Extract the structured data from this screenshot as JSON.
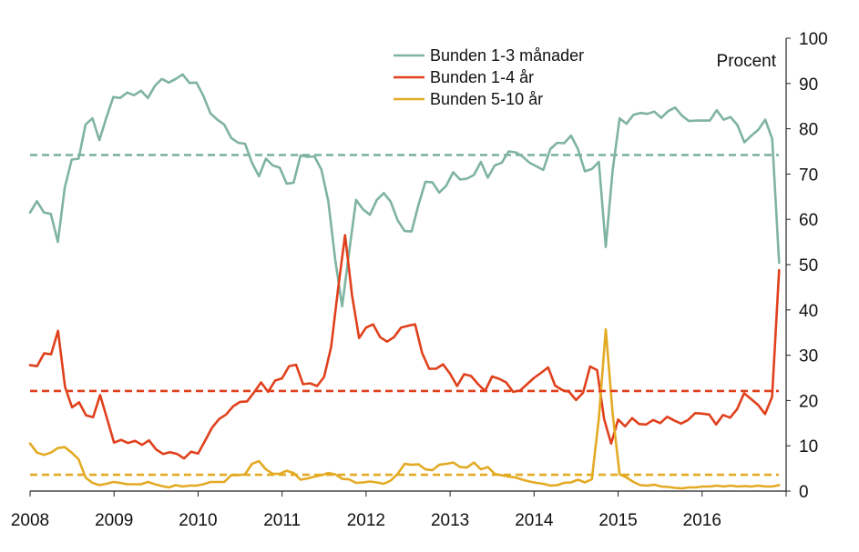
{
  "chart_data": {
    "type": "line",
    "y_unit_label": "Procent",
    "x_ticks": [
      "2008",
      "2009",
      "2010",
      "2011",
      "2012",
      "2013",
      "2014",
      "2015",
      "2016"
    ],
    "x_range": [
      2008.0,
      2017.0
    ],
    "ylim": [
      0,
      100
    ],
    "y_ticks": [
      "0",
      "10",
      "20",
      "30",
      "40",
      "50",
      "60",
      "70",
      "80",
      "90",
      "100"
    ],
    "grid": false,
    "legend_position": "top-center",
    "series": [
      {
        "name": "Bunden 1-3 månader",
        "color": "#7fb3a2",
        "average": 74.2,
        "values": [
          61.5,
          64,
          61.5,
          61.2,
          55,
          67,
          73.2,
          73.4,
          80.9,
          82.3,
          77.5,
          82.5,
          87,
          86.8,
          88,
          87.4,
          88.4,
          86.8,
          89.5,
          91,
          90.2,
          91,
          92,
          90.1,
          90.2,
          87.2,
          83.4,
          82,
          80.9,
          78,
          76.9,
          76.7,
          72.5,
          69.5,
          73.4,
          71.9,
          71.4,
          67.9,
          68.1,
          74.1,
          73.8,
          73.9,
          71,
          64,
          51.1,
          40.8,
          52.7,
          64.3,
          62.2,
          61,
          64.3,
          65.8,
          63.9,
          59.8,
          57.4,
          57.3,
          63.2,
          68.3,
          68.2,
          65.9,
          67.4,
          70.4,
          68.8,
          69,
          69.8,
          72.7,
          69.2,
          71.9,
          72.5,
          75,
          74.8,
          73.9,
          72.5,
          71.7,
          70.9,
          75.5,
          76.9,
          76.8,
          78.5,
          75.5,
          70.6,
          71.1,
          72.7,
          53.9,
          70.9,
          82.3,
          81.1,
          83.1,
          83.5,
          83.3,
          83.8,
          82.4,
          83.9,
          84.7,
          82.9,
          81.7,
          81.8,
          81.8,
          81.8,
          84.1,
          82,
          82.6,
          80.8,
          77,
          78.5,
          79.8,
          82,
          77.8,
          50.4
        ]
      },
      {
        "name": "Bunden 1-4 år",
        "color": "#e0401c",
        "average": 22.1,
        "values": [
          27.8,
          27.6,
          30.4,
          30.2,
          35.4,
          23,
          18.5,
          19.6,
          16.7,
          16.3,
          21.2,
          16,
          10.7,
          11.3,
          10.6,
          11.1,
          10.2,
          11.2,
          9.2,
          8.2,
          8.6,
          8.2,
          7.2,
          8.7,
          8.3,
          11.1,
          14,
          15.9,
          16.9,
          18.7,
          19.7,
          19.8,
          21.8,
          24,
          21.9,
          24.4,
          24.9,
          27.6,
          27.9,
          23.6,
          23.8,
          23.2,
          25.2,
          31.8,
          44.6,
          56.5,
          43.2,
          33.8,
          36.1,
          36.8,
          34,
          33,
          34,
          36.1,
          36.5,
          36.8,
          30.5,
          27,
          27,
          28,
          25.9,
          23.2,
          25.8,
          25.4,
          23.6,
          22.1,
          25.3,
          24.8,
          24,
          21.9,
          22.2,
          23.6,
          25,
          26.1,
          27.3,
          23.3,
          22.3,
          21.9,
          20.1,
          21.7,
          27.5,
          26.7,
          15.9,
          10.5,
          15.8,
          14.3,
          16.1,
          14.8,
          14.7,
          15.7,
          15,
          16.4,
          15.6,
          14.9,
          15.7,
          17.2,
          17.1,
          16.9,
          14.7,
          16.8,
          16.2,
          18.1,
          21.6,
          20.3,
          19,
          17,
          20.8,
          48.8
        ]
      },
      {
        "name": "Bunden 5-10 år",
        "color": "#e3aa24",
        "average": 3.6,
        "values": [
          10.5,
          8.5,
          8,
          8.5,
          9.5,
          9.7,
          8.5,
          7,
          3,
          1.8,
          1.3,
          1.6,
          2,
          1.8,
          1.5,
          1.5,
          1.5,
          2,
          1.5,
          1.1,
          0.8,
          1.3,
          1,
          1.2,
          1.2,
          1.5,
          2,
          2,
          2,
          3.5,
          3.5,
          3.7,
          6,
          6.6,
          4.8,
          3.8,
          3.8,
          4.5,
          4,
          2.5,
          2.8,
          3.2,
          3.5,
          4,
          3.7,
          2.7,
          2.6,
          1.8,
          1.9,
          2.1,
          1.9,
          1.6,
          2.3,
          3.8,
          6,
          5.8,
          5.9,
          4.8,
          4.6,
          5.8,
          6,
          6.3,
          5.3,
          5.2,
          6.3,
          4.8,
          5.3,
          3.8,
          3.5,
          3.2,
          3,
          2.5,
          2.1,
          1.8,
          1.6,
          1.2,
          1.3,
          1.8,
          1.9,
          2.5,
          1.9,
          2.6,
          16,
          35.7,
          17,
          3.7,
          3,
          2,
          1.3,
          1.2,
          1.4,
          1,
          0.9,
          0.7,
          0.6,
          0.8,
          0.8,
          1,
          1,
          1.2,
          1,
          1.2,
          1,
          1.1,
          1,
          1.2,
          1,
          1,
          1.3
        ]
      }
    ]
  }
}
